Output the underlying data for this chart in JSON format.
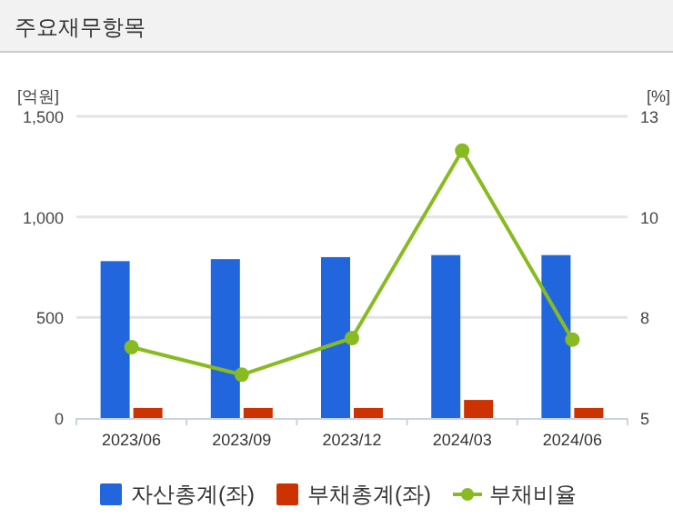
{
  "chart_data": {
    "type": "bar",
    "title": "주요재무항목",
    "ylabel": "[억원]",
    "y2label": "[%]",
    "categories": [
      "2023/06",
      "2023/09",
      "2023/12",
      "2024/03",
      "2024/06"
    ],
    "ylim": [
      0,
      1500
    ],
    "yticks": [
      0,
      500,
      {
        "value": 1000,
        "label": "1,000"
      },
      {
        "value": 1500,
        "label": "1,500"
      }
    ],
    "y2lim": [
      5,
      13
    ],
    "y2ticks": [
      5,
      {
        "value": 7.667,
        "label": "8"
      },
      {
        "value": 10.333,
        "label": "10"
      },
      13
    ],
    "grid": "y",
    "legend": "bottom",
    "marker": "circle",
    "series": [
      {
        "name": "자산총계(좌)",
        "color": "#2266dd",
        "values": [
          780,
          790,
          800,
          810,
          810
        ]
      },
      {
        "name": "부채총계(좌)",
        "color": "#cc3300",
        "values": [
          50,
          50,
          50,
          90,
          50
        ]
      },
      {
        "name": "부채비율",
        "type": "line",
        "axis": "y2",
        "color": "#88bb22",
        "values": [
          6.88,
          6.15,
          7.12,
          12.09,
          7.08
        ]
      }
    ]
  }
}
